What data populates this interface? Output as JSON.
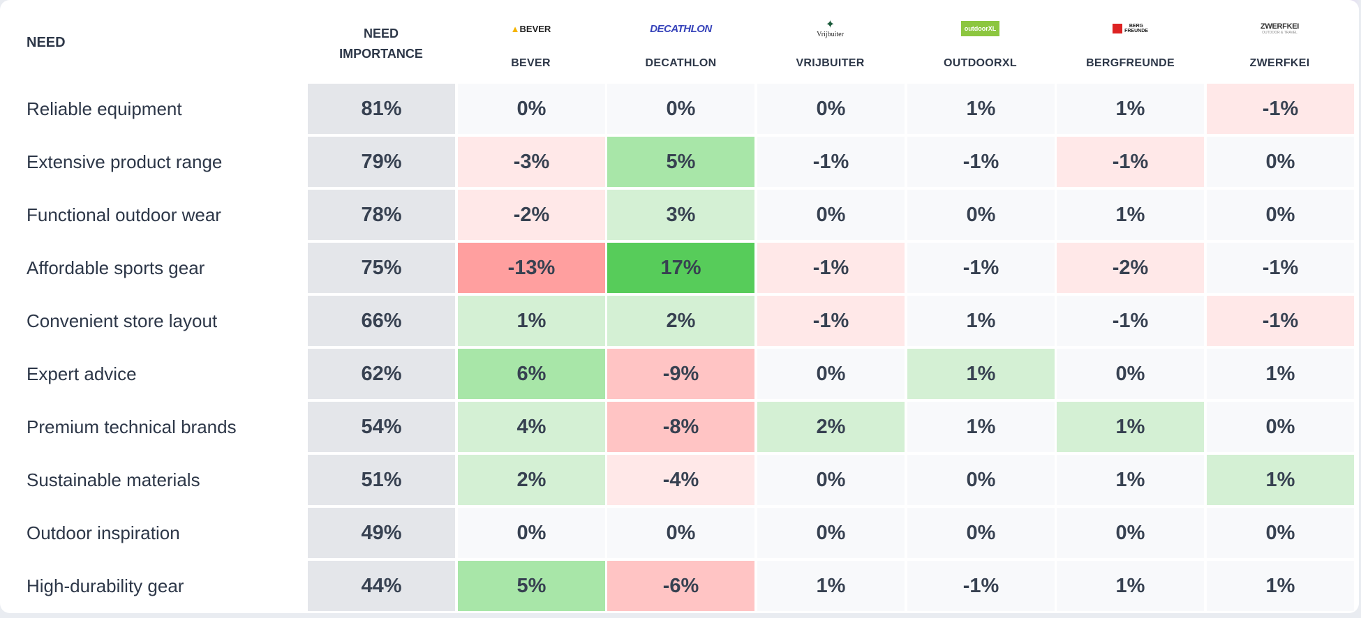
{
  "table": {
    "header": {
      "need_label": "NEED",
      "importance_label_line1": "NEED",
      "importance_label_line2": "IMPORTANCE",
      "brands": [
        {
          "name": "BEVER",
          "logo_text": "BEVER",
          "icon": "bever-logo-icon"
        },
        {
          "name": "DECATHLON",
          "logo_text": "DECATHLON",
          "icon": "decathlon-logo-icon"
        },
        {
          "name": "VRIJBUITER",
          "logo_text": "Vrijbuiter",
          "icon": "vrijbuiter-logo-icon"
        },
        {
          "name": "OUTDOORXL",
          "logo_text": "outdoorXL",
          "icon": "outdoorxl-logo-icon"
        },
        {
          "name": "BERGFREUNDE",
          "logo_text_line1": "BERG",
          "logo_text_line2": "FREUNDE",
          "icon": "bergfreunde-logo-icon"
        },
        {
          "name": "ZWERFKEI",
          "logo_text": "ZWERFKEI",
          "logo_subtext": "OUTDOOR & TRAVEL",
          "icon": "zwerfkei-logo-icon"
        }
      ]
    },
    "rows": [
      {
        "need": "Reliable equipment",
        "importance": "81%",
        "values": [
          "0%",
          "0%",
          "0%",
          "1%",
          "1%",
          "-1%"
        ]
      },
      {
        "need": "Extensive product range",
        "importance": "79%",
        "values": [
          "-3%",
          "5%",
          "-1%",
          "-1%",
          "-1%",
          "0%"
        ]
      },
      {
        "need": "Functional outdoor wear",
        "importance": "78%",
        "values": [
          "-2%",
          "3%",
          "0%",
          "0%",
          "1%",
          "0%"
        ]
      },
      {
        "need": "Affordable sports gear",
        "importance": "75%",
        "values": [
          "-13%",
          "17%",
          "-1%",
          "-1%",
          "-2%",
          "-1%"
        ]
      },
      {
        "need": "Convenient store layout",
        "importance": "66%",
        "values": [
          "1%",
          "2%",
          "-1%",
          "1%",
          "-1%",
          "-1%"
        ]
      },
      {
        "need": "Expert advice",
        "importance": "62%",
        "values": [
          "6%",
          "-9%",
          "0%",
          "1%",
          "0%",
          "1%"
        ]
      },
      {
        "need": "Premium technical brands",
        "importance": "54%",
        "values": [
          "4%",
          "-8%",
          "2%",
          "1%",
          "1%",
          "0%"
        ]
      },
      {
        "need": "Sustainable materials",
        "importance": "51%",
        "values": [
          "2%",
          "-4%",
          "0%",
          "0%",
          "1%",
          "1%"
        ]
      },
      {
        "need": "Outdoor inspiration",
        "importance": "49%",
        "values": [
          "0%",
          "0%",
          "0%",
          "0%",
          "0%",
          "0%"
        ]
      },
      {
        "need": "High-durability gear",
        "importance": "44%",
        "values": [
          "5%",
          "-6%",
          "1%",
          "-1%",
          "1%",
          "1%"
        ]
      }
    ],
    "shading": [
      [
        "n",
        "n",
        "n",
        "n",
        "n",
        "r1"
      ],
      [
        "r1",
        "g2",
        "n",
        "n",
        "r1",
        "n"
      ],
      [
        "r1",
        "g1",
        "n",
        "n",
        "n",
        "n"
      ],
      [
        "r3",
        "g3",
        "r1",
        "n",
        "r1",
        "n"
      ],
      [
        "g1",
        "g1",
        "r1",
        "n",
        "n",
        "r1"
      ],
      [
        "g2",
        "r2",
        "n",
        "g1",
        "n",
        "n"
      ],
      [
        "g1",
        "r2",
        "g1",
        "n",
        "g1",
        "n"
      ],
      [
        "g1",
        "r1",
        "n",
        "n",
        "n",
        "g1"
      ],
      [
        "n",
        "n",
        "n",
        "n",
        "n",
        "n"
      ],
      [
        "g2",
        "r2",
        "n",
        "n",
        "n",
        "n"
      ]
    ]
  }
}
